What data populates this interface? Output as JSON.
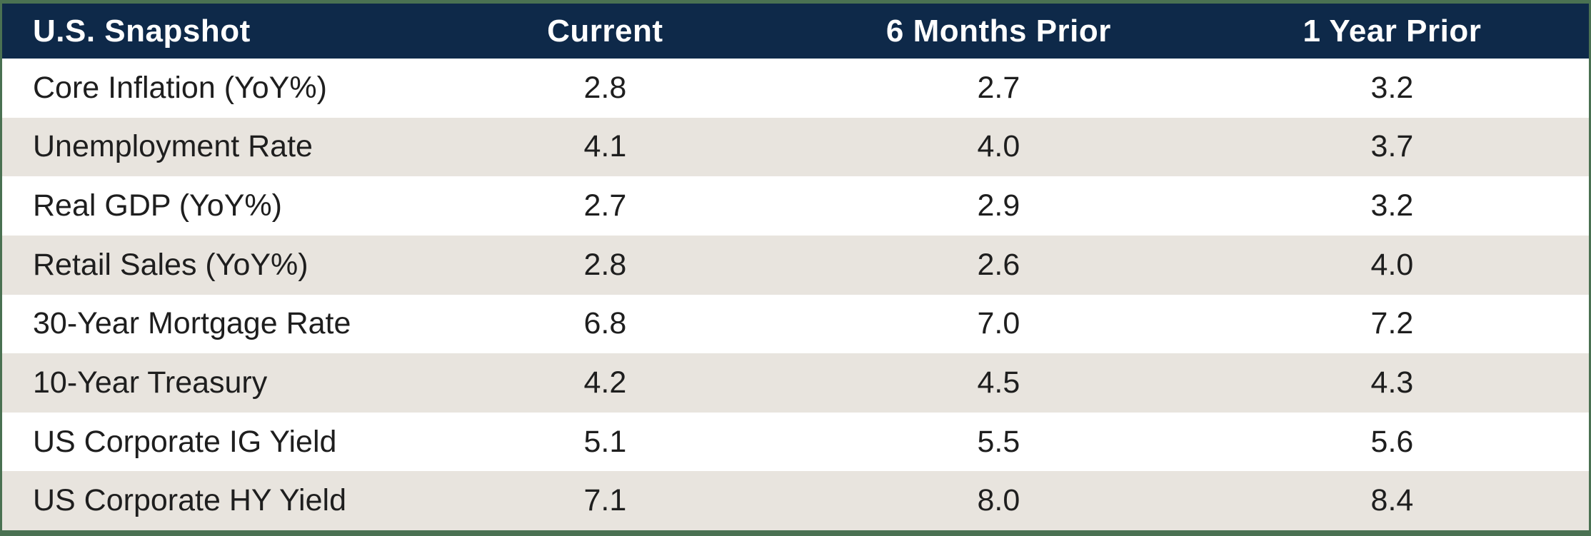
{
  "table": {
    "title": "U.S. Snapshot",
    "columns": [
      "Current",
      "6 Months Prior",
      "1 Year Prior"
    ],
    "rows": [
      {
        "label": "Core Inflation (YoY%)",
        "current": "2.8",
        "six_months_prior": "2.7",
        "one_year_prior": "3.2"
      },
      {
        "label": "Unemployment Rate",
        "current": "4.1",
        "six_months_prior": "4.0",
        "one_year_prior": "3.7"
      },
      {
        "label": "Real GDP (YoY%)",
        "current": "2.7",
        "six_months_prior": "2.9",
        "one_year_prior": "3.2"
      },
      {
        "label": "Retail Sales (YoY%)",
        "current": "2.8",
        "six_months_prior": "2.6",
        "one_year_prior": "4.0"
      },
      {
        "label": "30-Year Mortgage Rate",
        "current": "6.8",
        "six_months_prior": "7.0",
        "one_year_prior": "7.2"
      },
      {
        "label": "10-Year Treasury",
        "current": "4.2",
        "six_months_prior": "4.5",
        "one_year_prior": "4.3"
      },
      {
        "label": "US Corporate IG Yield",
        "current": "5.1",
        "six_months_prior": "5.5",
        "one_year_prior": "5.6"
      },
      {
        "label": "US Corporate HY Yield",
        "current": "7.1",
        "six_months_prior": "8.0",
        "one_year_prior": "8.4"
      }
    ]
  },
  "colors": {
    "header_bg": "#0E2949",
    "header_text": "#FFFFFF",
    "row_alt_bg": "#E8E4DE",
    "row_bg": "#FFFFFF",
    "frame_border": "#4A7152",
    "body_text": "#1E1E1E"
  },
  "chart_data": {
    "type": "table",
    "title": "U.S. Snapshot",
    "categories": [
      "Core Inflation (YoY%)",
      "Unemployment Rate",
      "Real GDP (YoY%)",
      "Retail Sales (YoY%)",
      "30-Year Mortgage Rate",
      "10-Year Treasury",
      "US Corporate IG Yield",
      "US Corporate HY Yield"
    ],
    "series": [
      {
        "name": "Current",
        "values": [
          2.8,
          4.1,
          2.7,
          2.8,
          6.8,
          4.2,
          5.1,
          7.1
        ]
      },
      {
        "name": "6 Months Prior",
        "values": [
          2.7,
          4.0,
          2.9,
          2.6,
          7.0,
          4.5,
          5.5,
          8.0
        ]
      },
      {
        "name": "1 Year Prior",
        "values": [
          3.2,
          3.7,
          3.2,
          4.0,
          7.2,
          4.3,
          5.6,
          8.4
        ]
      }
    ]
  }
}
